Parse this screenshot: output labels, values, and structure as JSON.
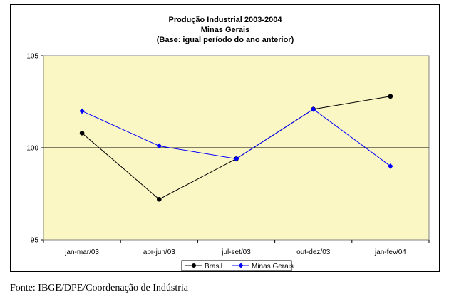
{
  "chart_data": {
    "type": "line",
    "title": "Produção Industrial 2003-2004",
    "subtitle": "Minas Gerais",
    "note": "(Base: igual período do ano anterior)",
    "categories": [
      "jan-mar/03",
      "abr-jun/03",
      "jul-set/03",
      "out-dez/03",
      "jan-fev/04"
    ],
    "series": [
      {
        "name": "Brasil",
        "values": [
          100.8,
          97.2,
          99.4,
          102.1,
          102.8
        ],
        "color": "#000000",
        "marker": "circle"
      },
      {
        "name": "Minas Gerais",
        "values": [
          102.0,
          100.1,
          99.4,
          102.1,
          99.0
        ],
        "color": "#0000ff",
        "marker": "diamond"
      }
    ],
    "ylim": [
      95,
      105
    ],
    "yticks": [
      "95",
      "100",
      "105"
    ],
    "reference_line": 100,
    "plot_background": "#fbf7c4",
    "grid": false,
    "legend_position": "bottom-center"
  },
  "source": "Fonte: IBGE/DPE/Coordenação de Indústria"
}
